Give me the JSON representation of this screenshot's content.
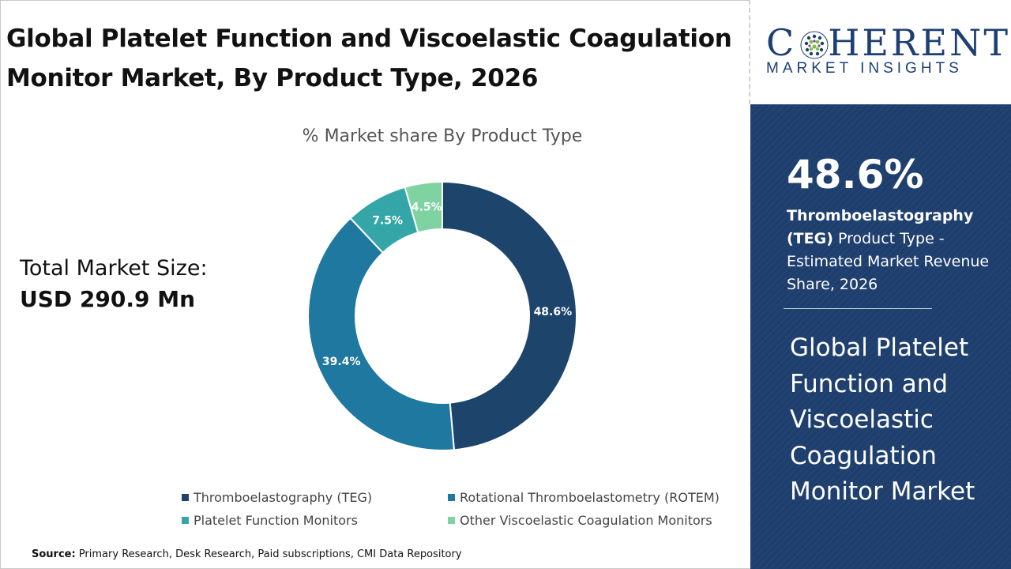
{
  "header": {
    "title_line1": "Global Platelet Function and Viscoelastic Coagulation",
    "title_line2": "Monitor Market, By Product Type, 2026"
  },
  "logo": {
    "main_prefix": "C",
    "main_suffix": "HERENT",
    "sub": "MARKET INSIGHTS"
  },
  "summary": {
    "total_label": "Total Market Size:",
    "total_value": "USD 290.9 Mn"
  },
  "highlight": {
    "percent": "48.6%",
    "segment_bold": "Thromboelastography (TEG)",
    "description": " Product Type - Estimated Market Revenue Share, 2026",
    "panel_title": "Global Platelet Function and Viscoelastic Coagulation Monitor Market"
  },
  "source": {
    "label": "Source:",
    "text": " Primary Research, Desk Research, Paid subscriptions, CMI Data Repository"
  },
  "colors": {
    "panel_bg": "#1e3f6e",
    "brand": "#1d3f73"
  },
  "chart_data": {
    "type": "pie",
    "subtitle": "% Market share By Product Type",
    "donut": true,
    "legend_position": "bottom",
    "categories": [
      "Thromboelastography (TEG)",
      "Rotational Thromboelastometry (ROTEM)",
      "Platelet Function Monitors",
      "Other Viscoelastic Coagulation Monitors"
    ],
    "values": [
      48.6,
      39.4,
      7.5,
      4.5
    ],
    "labels": [
      "48.6%",
      "39.4%",
      "7.5%",
      "4.5%"
    ],
    "colors": [
      "#1d456c",
      "#1f78a0",
      "#34a6a8",
      "#7fd3a0"
    ]
  }
}
